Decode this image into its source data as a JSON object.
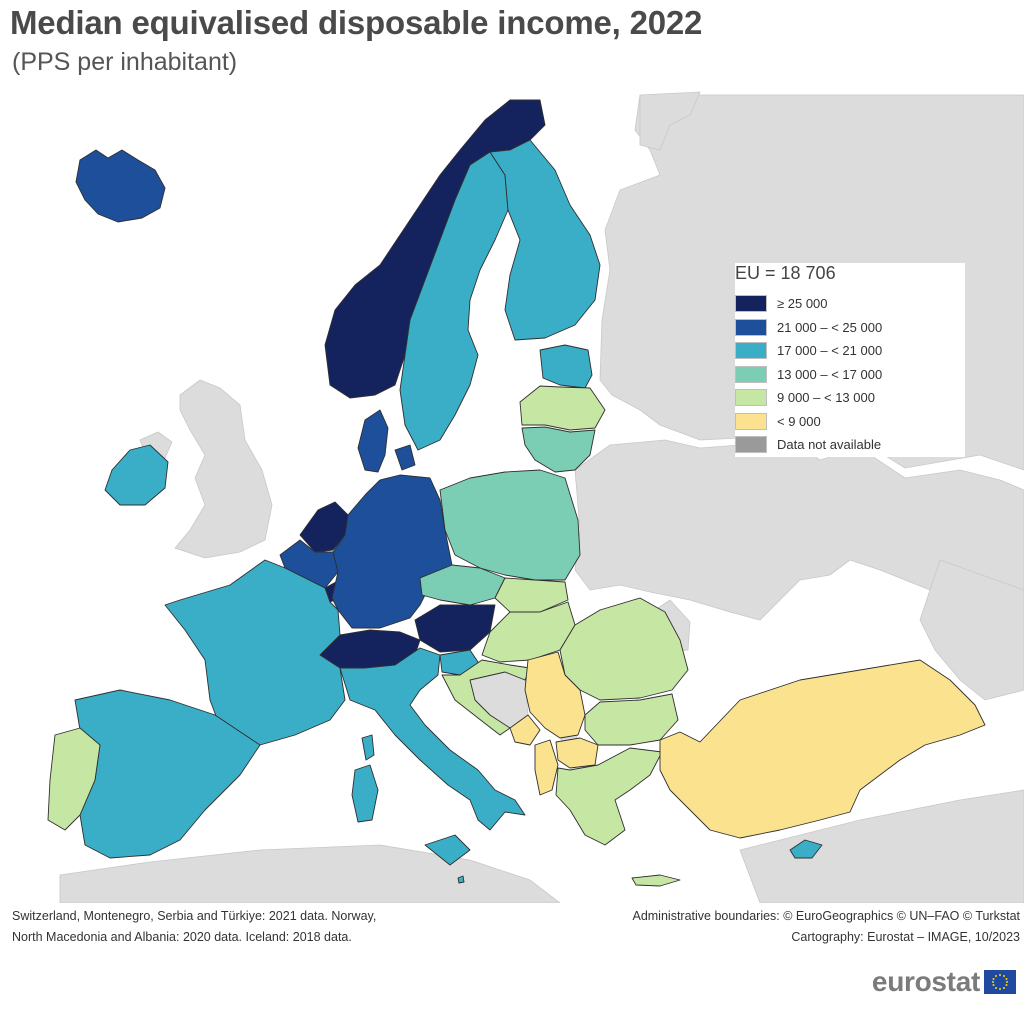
{
  "title": "Median equivalised disposable income, 2022",
  "subtitle": "(PPS per inhabitant)",
  "legend": {
    "title": "EU = 18 706",
    "classes": [
      {
        "label": "≥ 25 000",
        "color": "#14235e"
      },
      {
        "label": "21 000 – < 25 000",
        "color": "#1e4f9a"
      },
      {
        "label": "17 000 – < 21 000",
        "color": "#3aaec6"
      },
      {
        "label": "13 000 – < 17 000",
        "color": "#7bcdb3"
      },
      {
        "label": "9 000 – < 13 000",
        "color": "#c6e6a4"
      },
      {
        "label": "< 9 000",
        "color": "#fbe28f"
      },
      {
        "label": "Data not available",
        "color": "#9a9a9a"
      }
    ]
  },
  "colors": {
    "non_eu_land": "#dcdcdc",
    "sea": "#ffffff",
    "border": "#333333"
  },
  "footnotes": {
    "left": [
      "Switzerland, Montenegro, Serbia and Türkiye: 2021 data. Norway,",
      "North Macedonia and Albania: 2020 data. Iceland: 2018 data."
    ],
    "right": [
      "Administrative boundaries: © EuroGeographics © UN–FAO © Turkstat",
      "Cartography: Eurostat – IMAGE, 10/2023"
    ]
  },
  "logo": {
    "text": "eurostat",
    "icon": "eu-flag-icon"
  },
  "regions": [
    {
      "name": "Iceland",
      "class": 1
    },
    {
      "name": "Norway",
      "class": 0
    },
    {
      "name": "Sweden",
      "class": 2
    },
    {
      "name": "Finland",
      "class": 2
    },
    {
      "name": "Estonia",
      "class": 2
    },
    {
      "name": "Latvia",
      "class": 4
    },
    {
      "name": "Lithuania",
      "class": 3
    },
    {
      "name": "Denmark",
      "class": 1
    },
    {
      "name": "Ireland",
      "class": 2
    },
    {
      "name": "Netherlands",
      "class": 0
    },
    {
      "name": "Belgium",
      "class": 1
    },
    {
      "name": "Luxembourg",
      "class": 0
    },
    {
      "name": "Germany",
      "class": 1
    },
    {
      "name": "Poland",
      "class": 3
    },
    {
      "name": "Czechia",
      "class": 3
    },
    {
      "name": "Slovakia",
      "class": 4
    },
    {
      "name": "Austria",
      "class": 0
    },
    {
      "name": "Switzerland",
      "class": 0
    },
    {
      "name": "France",
      "class": 2
    },
    {
      "name": "Spain",
      "class": 2
    },
    {
      "name": "Portugal",
      "class": 4
    },
    {
      "name": "Italy",
      "class": 2
    },
    {
      "name": "Slovenia",
      "class": 2
    },
    {
      "name": "Hungary",
      "class": 4
    },
    {
      "name": "Croatia",
      "class": 4
    },
    {
      "name": "Romania",
      "class": 4
    },
    {
      "name": "Serbia",
      "class": 5
    },
    {
      "name": "Montenegro",
      "class": 5
    },
    {
      "name": "Albania",
      "class": 5
    },
    {
      "name": "North Macedonia",
      "class": 5
    },
    {
      "name": "Bulgaria",
      "class": 4
    },
    {
      "name": "Greece",
      "class": 4
    },
    {
      "name": "Türkiye",
      "class": 5
    },
    {
      "name": "Cyprus",
      "class": 2
    },
    {
      "name": "Malta",
      "class": 2
    }
  ]
}
